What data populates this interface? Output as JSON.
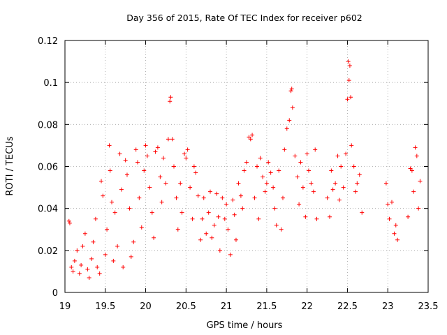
{
  "chart_data": {
    "type": "scatter",
    "title": "Day 356 of 2015, Rate Of TEC Index for receiver p602",
    "xlabel": "GPS time / hours",
    "ylabel": "ROTI / TECUs",
    "xlim": [
      19,
      23.5
    ],
    "ylim": [
      0,
      0.12
    ],
    "xticks": [
      "19",
      "19.5",
      "20",
      "20.5",
      "21",
      "21.5",
      "22",
      "22.5",
      "23",
      "23.5"
    ],
    "yticks": [
      "0",
      "0.02",
      "0.04",
      "0.06",
      "0.08",
      "0.1",
      "0.12"
    ],
    "grid": true,
    "marker": "+",
    "color": "#ff0000",
    "series": [
      {
        "name": "ROTI",
        "points": [
          [
            19.05,
            0.034
          ],
          [
            19.06,
            0.033
          ],
          [
            19.08,
            0.012
          ],
          [
            19.1,
            0.01
          ],
          [
            19.12,
            0.015
          ],
          [
            19.15,
            0.02
          ],
          [
            19.18,
            0.009
          ],
          [
            19.2,
            0.013
          ],
          [
            19.22,
            0.022
          ],
          [
            19.25,
            0.028
          ],
          [
            19.28,
            0.011
          ],
          [
            19.3,
            0.007
          ],
          [
            19.33,
            0.016
          ],
          [
            19.35,
            0.024
          ],
          [
            19.38,
            0.035
          ],
          [
            19.4,
            0.012
          ],
          [
            19.43,
            0.009
          ],
          [
            19.45,
            0.053
          ],
          [
            19.47,
            0.046
          ],
          [
            19.5,
            0.018
          ],
          [
            19.52,
            0.03
          ],
          [
            19.55,
            0.07
          ],
          [
            19.56,
            0.058
          ],
          [
            19.58,
            0.043
          ],
          [
            19.6,
            0.015
          ],
          [
            19.62,
            0.038
          ],
          [
            19.65,
            0.022
          ],
          [
            19.68,
            0.066
          ],
          [
            19.7,
            0.049
          ],
          [
            19.72,
            0.012
          ],
          [
            19.75,
            0.063
          ],
          [
            19.77,
            0.056
          ],
          [
            19.8,
            0.04
          ],
          [
            19.82,
            0.017
          ],
          [
            19.85,
            0.024
          ],
          [
            19.88,
            0.068
          ],
          [
            19.9,
            0.062
          ],
          [
            19.92,
            0.045
          ],
          [
            19.95,
            0.031
          ],
          [
            19.98,
            0.058
          ],
          [
            20.0,
            0.07
          ],
          [
            20.02,
            0.065
          ],
          [
            20.05,
            0.05
          ],
          [
            20.08,
            0.038
          ],
          [
            20.1,
            0.026
          ],
          [
            20.12,
            0.067
          ],
          [
            20.15,
            0.069
          ],
          [
            20.18,
            0.055
          ],
          [
            20.2,
            0.043
          ],
          [
            20.22,
            0.064
          ],
          [
            20.25,
            0.052
          ],
          [
            20.28,
            0.073
          ],
          [
            20.3,
            0.091
          ],
          [
            20.31,
            0.093
          ],
          [
            20.33,
            0.073
          ],
          [
            20.35,
            0.06
          ],
          [
            20.38,
            0.045
          ],
          [
            20.4,
            0.03
          ],
          [
            20.43,
            0.052
          ],
          [
            20.45,
            0.038
          ],
          [
            20.48,
            0.066
          ],
          [
            20.5,
            0.064
          ],
          [
            20.52,
            0.068
          ],
          [
            20.55,
            0.05
          ],
          [
            20.58,
            0.035
          ],
          [
            20.6,
            0.06
          ],
          [
            20.62,
            0.057
          ],
          [
            20.65,
            0.046
          ],
          [
            20.68,
            0.025
          ],
          [
            20.7,
            0.035
          ],
          [
            20.72,
            0.045
          ],
          [
            20.75,
            0.028
          ],
          [
            20.78,
            0.038
          ],
          [
            20.8,
            0.048
          ],
          [
            20.82,
            0.026
          ],
          [
            20.85,
            0.032
          ],
          [
            20.88,
            0.047
          ],
          [
            20.9,
            0.036
          ],
          [
            20.92,
            0.02
          ],
          [
            20.95,
            0.045
          ],
          [
            20.98,
            0.035
          ],
          [
            21.0,
            0.042
          ],
          [
            21.02,
            0.03
          ],
          [
            21.05,
            0.018
          ],
          [
            21.08,
            0.044
          ],
          [
            21.1,
            0.037
          ],
          [
            21.12,
            0.025
          ],
          [
            21.15,
            0.052
          ],
          [
            21.18,
            0.046
          ],
          [
            21.2,
            0.04
          ],
          [
            21.22,
            0.058
          ],
          [
            21.25,
            0.062
          ],
          [
            21.28,
            0.074
          ],
          [
            21.3,
            0.073
          ],
          [
            21.32,
            0.075
          ],
          [
            21.35,
            0.045
          ],
          [
            21.38,
            0.06
          ],
          [
            21.4,
            0.035
          ],
          [
            21.42,
            0.064
          ],
          [
            21.45,
            0.055
          ],
          [
            21.48,
            0.048
          ],
          [
            21.5,
            0.052
          ],
          [
            21.52,
            0.062
          ],
          [
            21.55,
            0.057
          ],
          [
            21.58,
            0.05
          ],
          [
            21.6,
            0.04
          ],
          [
            21.62,
            0.032
          ],
          [
            21.65,
            0.058
          ],
          [
            21.68,
            0.03
          ],
          [
            21.7,
            0.045
          ],
          [
            21.72,
            0.068
          ],
          [
            21.75,
            0.078
          ],
          [
            21.78,
            0.082
          ],
          [
            21.8,
            0.096
          ],
          [
            21.81,
            0.097
          ],
          [
            21.82,
            0.088
          ],
          [
            21.85,
            0.065
          ],
          [
            21.88,
            0.055
          ],
          [
            21.9,
            0.042
          ],
          [
            21.92,
            0.062
          ],
          [
            21.95,
            0.05
          ],
          [
            21.98,
            0.036
          ],
          [
            22.0,
            0.066
          ],
          [
            22.02,
            0.058
          ],
          [
            22.05,
            0.052
          ],
          [
            22.08,
            0.048
          ],
          [
            22.1,
            0.068
          ],
          [
            22.12,
            0.035
          ],
          [
            22.25,
            0.045
          ],
          [
            22.28,
            0.036
          ],
          [
            22.3,
            0.058
          ],
          [
            22.32,
            0.049
          ],
          [
            22.35,
            0.052
          ],
          [
            22.38,
            0.065
          ],
          [
            22.4,
            0.044
          ],
          [
            22.42,
            0.06
          ],
          [
            22.45,
            0.05
          ],
          [
            22.48,
            0.066
          ],
          [
            22.5,
            0.092
          ],
          [
            22.51,
            0.11
          ],
          [
            22.52,
            0.101
          ],
          [
            22.53,
            0.108
          ],
          [
            22.54,
            0.093
          ],
          [
            22.55,
            0.07
          ],
          [
            22.58,
            0.06
          ],
          [
            22.6,
            0.048
          ],
          [
            22.62,
            0.052
          ],
          [
            22.65,
            0.056
          ],
          [
            22.68,
            0.038
          ],
          [
            22.98,
            0.052
          ],
          [
            23.0,
            0.042
          ],
          [
            23.02,
            0.035
          ],
          [
            23.05,
            0.043
          ],
          [
            23.08,
            0.028
          ],
          [
            23.1,
            0.032
          ],
          [
            23.12,
            0.025
          ],
          [
            23.25,
            0.036
          ],
          [
            23.28,
            0.059
          ],
          [
            23.3,
            0.058
          ],
          [
            23.32,
            0.048
          ],
          [
            23.34,
            0.069
          ],
          [
            23.36,
            0.065
          ],
          [
            23.38,
            0.04
          ],
          [
            23.4,
            0.053
          ]
        ]
      }
    ]
  }
}
